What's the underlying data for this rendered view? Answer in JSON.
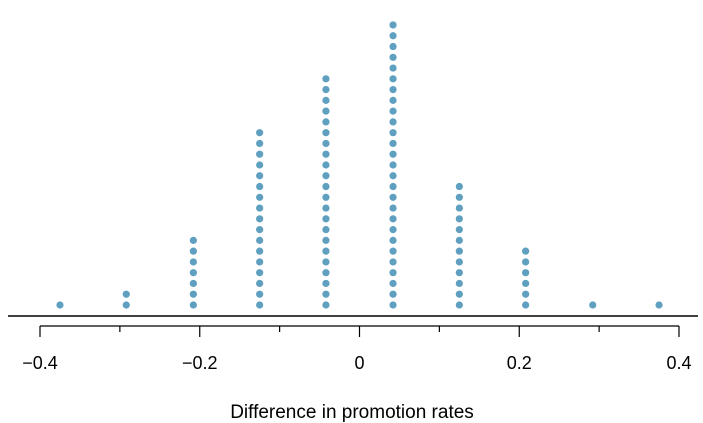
{
  "chart_data": {
    "type": "scatter",
    "subtype": "dot-plot",
    "title": "",
    "xlabel": "Difference in promotion rates",
    "ylabel": "",
    "xlim": [
      -0.4,
      0.4
    ],
    "x_ticks": [
      {
        "value": -0.4,
        "label": "−0.4"
      },
      {
        "value": -0.2,
        "label": "−0.2"
      },
      {
        "value": 0,
        "label": "0"
      },
      {
        "value": 0.2,
        "label": "0.2"
      },
      {
        "value": 0.4,
        "label": "0.4"
      }
    ],
    "minor_ticks": [
      -0.3,
      -0.1,
      0.1,
      0.3
    ],
    "stacks": [
      {
        "x": -0.375,
        "count": 1
      },
      {
        "x": -0.292,
        "count": 2
      },
      {
        "x": -0.208,
        "count": 7
      },
      {
        "x": -0.125,
        "count": 17
      },
      {
        "x": -0.042,
        "count": 22
      },
      {
        "x": 0.042,
        "count": 27
      },
      {
        "x": 0.125,
        "count": 12
      },
      {
        "x": 0.208,
        "count": 6
      },
      {
        "x": 0.292,
        "count": 1
      },
      {
        "x": 0.375,
        "count": 1
      }
    ],
    "dot_color": "#5f9fbf",
    "grid": false,
    "legend": "none"
  }
}
